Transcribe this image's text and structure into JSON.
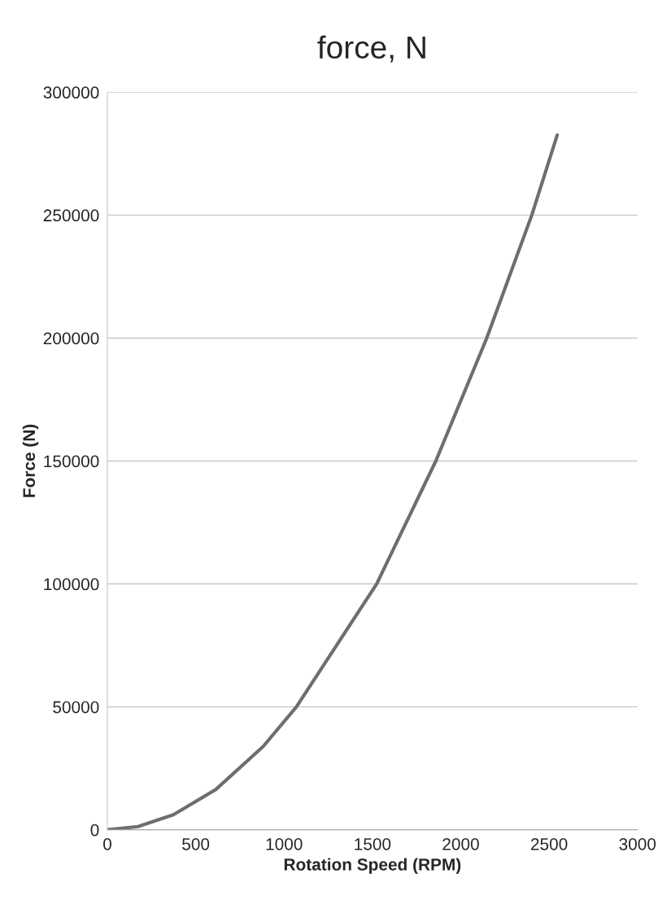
{
  "chart_data": {
    "type": "line",
    "title": "force, N",
    "xlabel": "Rotation Speed (RPM)",
    "ylabel": "Force (N)",
    "x": [
      0,
      173,
      373,
      614,
      882,
      1070,
      1524,
      1859,
      2147,
      2402,
      2546
    ],
    "series": [
      {
        "color": "#6e6e6e",
        "values": [
          0,
          1300,
          6100,
          16400,
          33900,
          50000,
          100000,
          150000,
          200000,
          250000,
          282600
        ]
      }
    ],
    "xlim": [
      0,
      3000
    ],
    "xticks": [
      0,
      500,
      1000,
      1500,
      2000,
      2500,
      3000
    ],
    "ylim": [
      0,
      300000
    ],
    "yticks": [
      0,
      50000,
      100000,
      150000,
      200000,
      250000,
      300000
    ],
    "grid": "y",
    "marker": "none",
    "line_style": "solid"
  }
}
